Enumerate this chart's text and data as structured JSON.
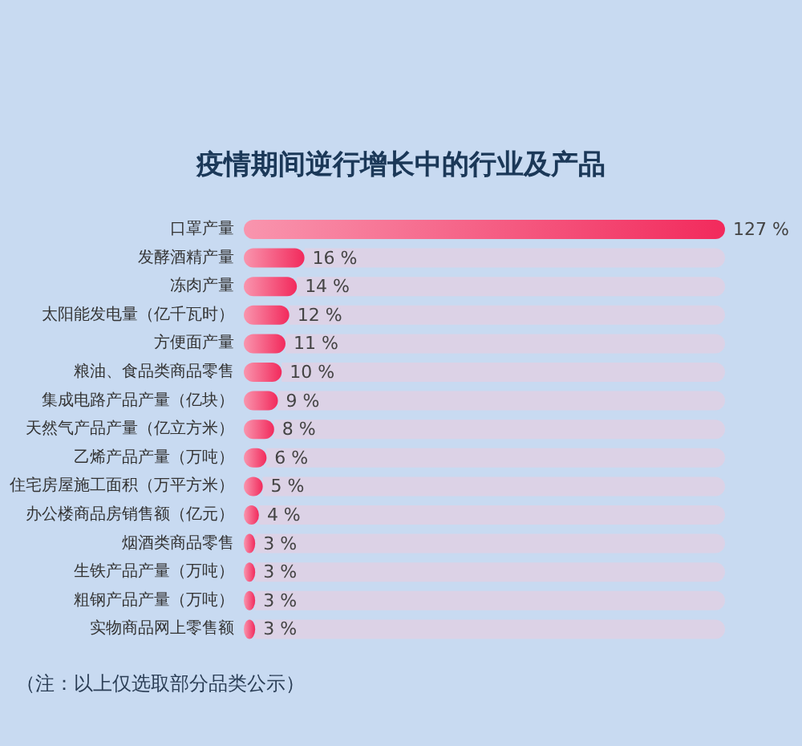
{
  "chart_data": {
    "type": "bar",
    "orientation": "horizontal",
    "stacked": true,
    "title": "疫情期间逆行增长中的行业及产品",
    "categories": [
      "口罩产量",
      "发酵酒精产量",
      "冻肉产量",
      "太阳能发电量（亿千瓦时）",
      "方便面产量",
      "粮油、食品类商品零售",
      "集成电路产品产量（亿块）",
      "天然气产品产量（亿立方米）",
      "乙烯产品产量（万吨）",
      "住宅房屋施工面积（万平方米）",
      "办公楼商品房销售额（亿元）",
      "烟酒类商品零售",
      "生铁产品产量（万吨）",
      "粗钢产品产量（万吨）",
      "实物商品网上零售额"
    ],
    "series": [
      {
        "color": "#f22a5c",
        "values": [
          127,
          16,
          14,
          12,
          11,
          10,
          9,
          8,
          6,
          5,
          4,
          3,
          3,
          3,
          3
        ],
        "value_labels": [
          "127 %",
          "16 %",
          "14 %",
          "12 %",
          "11 %",
          "10 %",
          "9 %",
          "8 %",
          "6 %",
          "5 %",
          "4 %",
          "3 %",
          "3 %",
          "3 %",
          "3 %"
        ]
      },
      {
        "color": "#dcd2e6",
        "values": [
          0,
          111,
          113,
          115,
          116,
          117,
          118,
          119,
          121,
          122,
          123,
          124,
          124,
          124,
          124
        ]
      }
    ],
    "annotations": [
      "（注：以上仅选取部分品类公示）"
    ]
  }
}
